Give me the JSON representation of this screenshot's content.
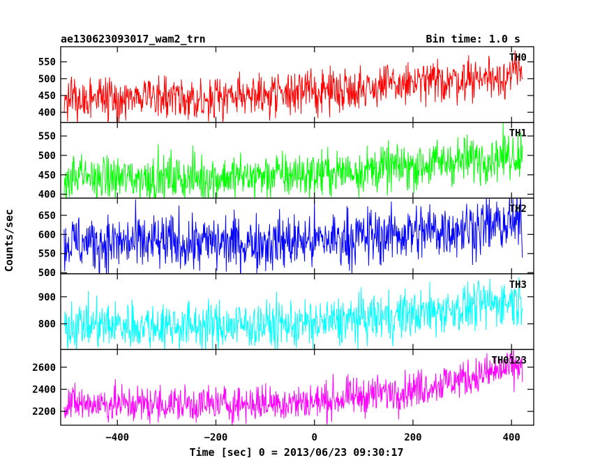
{
  "header": {
    "left_title": "ae130623093017_wam2_trn",
    "right_title": "Bin time: 1.0 s"
  },
  "chart_data": {
    "type": "line",
    "xlabel": "Time [sec] 0 = 2013/06/23 09:30:17",
    "ylabel": "Counts/sec",
    "xlim": [
      -515,
      445
    ],
    "xticks": [
      -400,
      -200,
      0,
      200,
      400
    ],
    "xticks_labels": [
      "−400",
      "−200",
      "0",
      "200",
      "400"
    ],
    "data_x_range": [
      -508,
      422
    ],
    "bin_time_s": 1.0,
    "panels": [
      {
        "name": "TH0",
        "color": "#ff0000",
        "ylim": [
          370,
          595
        ],
        "yticks": [
          400,
          450,
          500,
          550
        ],
        "trend": [
          [
            -508,
            440
          ],
          [
            -200,
            447
          ],
          [
            0,
            462
          ],
          [
            200,
            485
          ],
          [
            422,
            515
          ]
        ],
        "noise": 32
      },
      {
        "name": "TH1",
        "color": "#00ff00",
        "ylim": [
          390,
          585
        ],
        "yticks": [
          400,
          450,
          500,
          550
        ],
        "trend": [
          [
            -508,
            440
          ],
          [
            -200,
            443
          ],
          [
            0,
            452
          ],
          [
            200,
            473
          ],
          [
            422,
            505
          ]
        ],
        "noise": 30
      },
      {
        "name": "TH2",
        "color": "#0000ff",
        "ylim": [
          497,
          695
        ],
        "yticks": [
          500,
          550,
          600,
          650
        ],
        "trend": [
          [
            -508,
            578
          ],
          [
            -200,
            577
          ],
          [
            0,
            583
          ],
          [
            200,
            605
          ],
          [
            422,
            630
          ]
        ],
        "noise": 38
      },
      {
        "name": "TH3",
        "color": "#00ffff",
        "ylim": [
          705,
          985
        ],
        "yticks": [
          800,
          900
        ],
        "trend": [
          [
            -508,
            795
          ],
          [
            -200,
            793
          ],
          [
            0,
            800
          ],
          [
            200,
            835
          ],
          [
            422,
            890
          ]
        ],
        "noise": 45
      },
      {
        "name": "TH0123",
        "color": "#ff00ff",
        "ylim": [
          2075,
          2760
        ],
        "yticks": [
          2200,
          2400,
          2600
        ],
        "trend": [
          [
            -508,
            2270
          ],
          [
            -200,
            2265
          ],
          [
            0,
            2285
          ],
          [
            200,
            2400
          ],
          [
            422,
            2610
          ]
        ],
        "noise": 85
      }
    ]
  }
}
